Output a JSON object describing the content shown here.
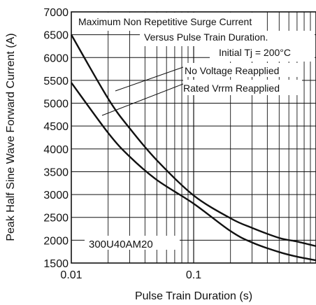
{
  "chart_data": {
    "type": "line",
    "title_lines": [
      "Maximum Non Repetitive Surge Current",
      "Versus Pulse Train Duration.",
      "Initial Tj = 200°C"
    ],
    "xlabel": "Pulse Train Duration (s)",
    "ylabel": "Peak Half Sine Wave Forward Current (A)",
    "x_scale": "log",
    "xlim": [
      0.01,
      1
    ],
    "ylim": [
      1500,
      7000
    ],
    "x_ticks": [
      {
        "value": 0.01,
        "label": "0.01"
      },
      {
        "value": 0.1,
        "label": "0.1"
      }
    ],
    "y_ticks": [
      {
        "value": 1500,
        "label": "1500"
      },
      {
        "value": 2000,
        "label": "2000"
      },
      {
        "value": 2500,
        "label": "2500"
      },
      {
        "value": 3000,
        "label": "3000"
      },
      {
        "value": 3500,
        "label": "3500"
      },
      {
        "value": 4000,
        "label": "4000"
      },
      {
        "value": 4500,
        "label": "4500"
      },
      {
        "value": 5000,
        "label": "5000"
      },
      {
        "value": 5500,
        "label": "5500"
      },
      {
        "value": 6000,
        "label": "6000"
      },
      {
        "value": 6500,
        "label": "6500"
      },
      {
        "value": 7000,
        "label": "7000"
      }
    ],
    "grid": true,
    "series": [
      {
        "name": "No Voltage Reapplied",
        "x": [
          0.01,
          0.02,
          0.03,
          0.05,
          0.1,
          0.2,
          0.3,
          0.5,
          0.7,
          1.0
        ],
        "y": [
          6500,
          5100,
          4450,
          3750,
          2980,
          2480,
          2270,
          2050,
          1970,
          1870
        ]
      },
      {
        "name": "Rated Vrrm Reapplied",
        "x": [
          0.01,
          0.02,
          0.03,
          0.05,
          0.1,
          0.2,
          0.3,
          0.5,
          0.7,
          1.0
        ],
        "y": [
          5450,
          4350,
          3830,
          3320,
          2800,
          2200,
          1950,
          1740,
          1640,
          1560
        ]
      }
    ],
    "part_label": "300U40AM20"
  }
}
